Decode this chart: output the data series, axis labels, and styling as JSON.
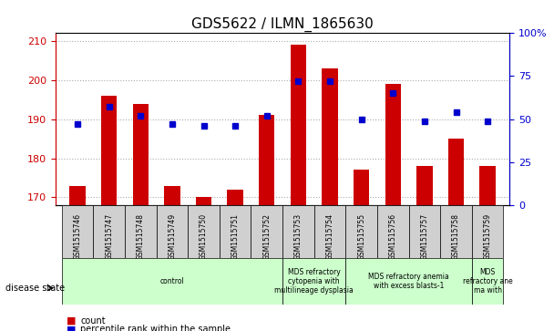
{
  "title": "GDS5622 / ILMN_1865630",
  "samples": [
    "GSM1515746",
    "GSM1515747",
    "GSM1515748",
    "GSM1515749",
    "GSM1515750",
    "GSM1515751",
    "GSM1515752",
    "GSM1515753",
    "GSM1515754",
    "GSM1515755",
    "GSM1515756",
    "GSM1515757",
    "GSM1515758",
    "GSM1515759"
  ],
  "counts": [
    173,
    196,
    194,
    173,
    170,
    172,
    191,
    209,
    203,
    177,
    199,
    178,
    185,
    178
  ],
  "percentiles": [
    47,
    57,
    52,
    47,
    46,
    46,
    52,
    72,
    72,
    50,
    65,
    49,
    54,
    49
  ],
  "ylim_left": [
    168,
    212
  ],
  "ylim_right": [
    0,
    100
  ],
  "yticks_left": [
    170,
    180,
    190,
    200,
    210
  ],
  "yticks_right": [
    0,
    25,
    50,
    75,
    100
  ],
  "bar_color": "#cc0000",
  "dot_color": "#0000cc",
  "bar_width": 0.5,
  "bar_base": 168,
  "disease_groups": [
    {
      "label": "control",
      "start": 0,
      "end": 7,
      "color": "#ccffcc"
    },
    {
      "label": "MDS refractory\ncytopenia with\nmultilineage dysplasia",
      "start": 7,
      "end": 9,
      "color": "#ccffcc"
    },
    {
      "label": "MDS refractory anemia\nwith excess blasts-1",
      "start": 9,
      "end": 13,
      "color": "#ccffcc"
    },
    {
      "label": "MDS\nrefractory ane\nma with",
      "start": 13,
      "end": 14,
      "color": "#ccffcc"
    }
  ],
  "xlabel_disease": "disease state",
  "legend_count": "count",
  "legend_percentile": "percentile rank within the sample",
  "background_color": "#ffffff",
  "grid_color": "#aaaaaa",
  "tick_label_color_left": "#cc0000",
  "tick_label_color_right": "#0000cc"
}
